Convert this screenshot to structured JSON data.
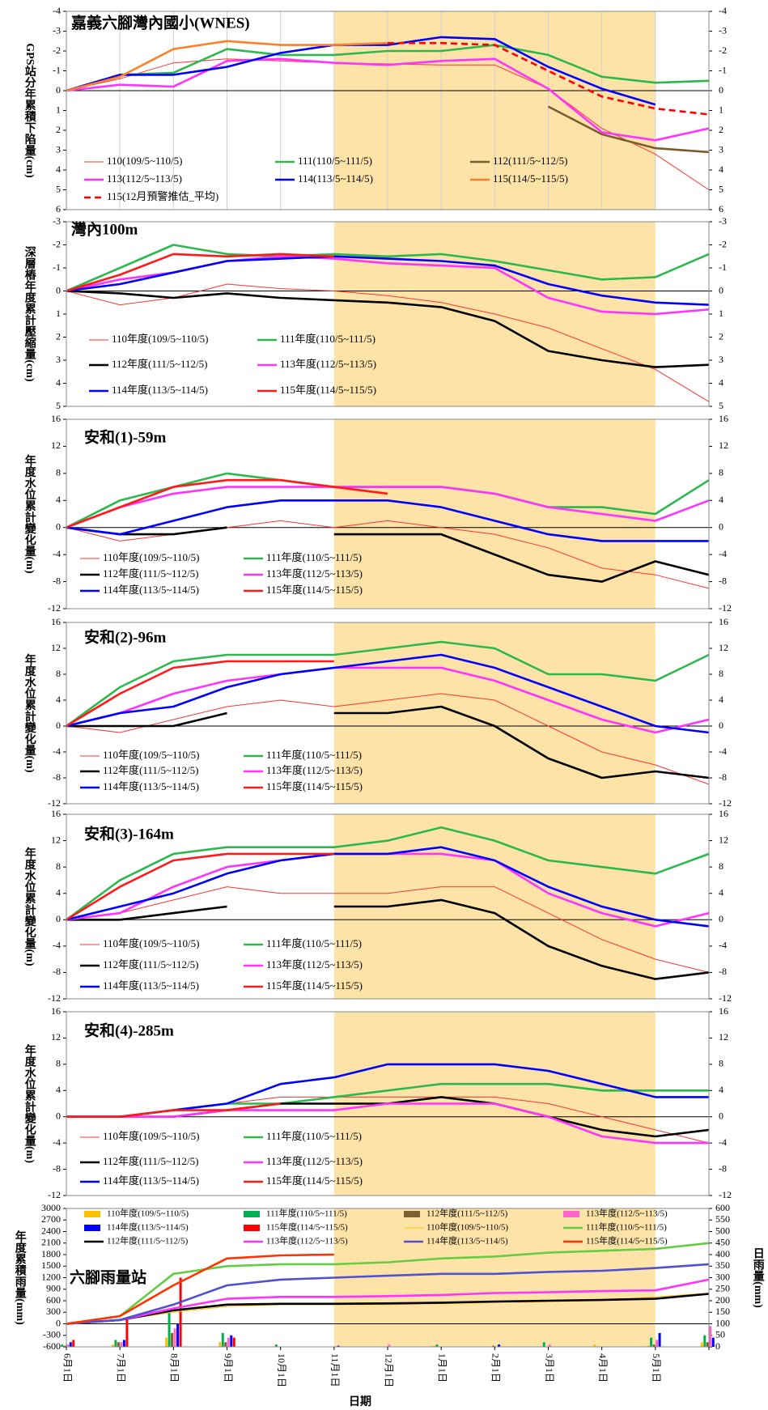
{
  "chart_data": [
    {
      "type": "line",
      "title": "嘉義六腳灣內國小(WNES)",
      "y_label": "GPS站分年累積下陷量(cm)",
      "ylim": [
        6,
        -4
      ],
      "yticks": [
        6,
        5,
        4,
        3,
        2,
        1,
        0,
        -1,
        -2,
        -3,
        -4
      ],
      "negative_tick_color": "#ff0000",
      "grid": true,
      "series": [
        {
          "name": "110(109/5~110/5)",
          "color": "#ff3333",
          "linestyle": "thin",
          "values": [
            0,
            -0.6,
            -1.4,
            -1.6,
            -1.5,
            -1.4,
            -1.35,
            -1.3,
            -1.3,
            -0.1,
            1.9,
            3.2,
            5.0
          ]
        },
        {
          "name": "111(110/5~111/5)",
          "color": "#2db84d",
          "values": [
            0,
            -0.8,
            -0.9,
            -2.1,
            -1.8,
            -1.8,
            -2.0,
            -2.0,
            -2.3,
            -1.8,
            -0.7,
            -0.4,
            -0.5
          ]
        },
        {
          "name": "112(111/5~112/5)",
          "color": "#7a5c2e",
          "values": [
            null,
            null,
            null,
            null,
            null,
            null,
            null,
            null,
            null,
            0.8,
            2.2,
            2.9,
            3.1
          ]
        },
        {
          "name": "113(112/5~113/5)",
          "color": "#ff33ff",
          "values": [
            0,
            -0.3,
            -0.2,
            -1.5,
            -1.6,
            -1.4,
            -1.3,
            -1.5,
            -1.6,
            -0.1,
            2.1,
            2.5,
            1.9
          ]
        },
        {
          "name": "114(113/5~114/5)",
          "color": "#0000ff",
          "values": [
            0,
            -0.8,
            -0.8,
            -1.2,
            -1.9,
            -2.3,
            -2.3,
            -2.7,
            -2.6,
            -1.2,
            -0.1,
            0.7,
            null
          ]
        },
        {
          "name": "115(114/5~115/5)",
          "color": "#ff7f27",
          "values": [
            0,
            -0.7,
            -2.1,
            -2.5,
            -2.3,
            -2.3,
            -2.4,
            null,
            null,
            null,
            null,
            null,
            null
          ]
        },
        {
          "name": "115(12月預警推估_平均)",
          "color": "#ff0000",
          "linestyle": "dashed",
          "values": [
            null,
            null,
            null,
            null,
            null,
            null,
            -2.4,
            -2.4,
            -2.3,
            -1.0,
            0.3,
            0.9,
            1.2
          ]
        }
      ]
    },
    {
      "type": "line",
      "title": "灣內100m",
      "y_label": "深層樁年度累計壓縮量(cm)",
      "ylim": [
        5,
        -3
      ],
      "yticks": [
        5,
        4,
        3,
        2,
        1,
        0,
        -1,
        -2,
        -3
      ],
      "negative_tick_color": "#ff0000",
      "series": [
        {
          "name": "110年度(109/5~110/5)",
          "color": "#ff3333",
          "linestyle": "thin",
          "values": [
            0,
            0.6,
            0.3,
            -0.3,
            -0.1,
            0.0,
            0.2,
            0.5,
            1.0,
            1.6,
            2.5,
            3.4,
            4.8
          ]
        },
        {
          "name": "111年度(110/5~111/5)",
          "color": "#2db84d",
          "values": [
            0,
            -1.0,
            -2.0,
            -1.6,
            -1.5,
            -1.6,
            -1.5,
            -1.6,
            -1.3,
            -0.9,
            -0.5,
            -0.6,
            -1.6
          ]
        },
        {
          "name": "112年度(111/5~112/5)",
          "color": "#000000",
          "values": [
            0,
            0.1,
            0.3,
            0.1,
            0.3,
            0.4,
            0.5,
            0.7,
            1.3,
            2.6,
            3.0,
            3.3,
            3.2
          ]
        },
        {
          "name": "113年度(112/5~113/5)",
          "color": "#ff33ff",
          "values": [
            0,
            -0.5,
            -0.8,
            -1.3,
            -1.5,
            -1.4,
            -1.2,
            -1.1,
            -1.0,
            0.3,
            0.9,
            1.0,
            0.8
          ]
        },
        {
          "name": "114年度(113/5~114/5)",
          "color": "#0000ff",
          "values": [
            0,
            -0.3,
            -0.8,
            -1.3,
            -1.4,
            -1.5,
            -1.4,
            -1.3,
            -1.1,
            -0.3,
            0.2,
            0.5,
            0.6
          ]
        },
        {
          "name": "115年度(114/5~115/5)",
          "color": "#ff1a1a",
          "values": [
            0,
            -0.7,
            -1.6,
            -1.5,
            -1.6,
            -1.5,
            null,
            null,
            null,
            null,
            null,
            null,
            null
          ]
        }
      ]
    },
    {
      "type": "line",
      "title": "安和(1)-59m",
      "y_label": "年度水位累計變化量(m)",
      "ylim": [
        -12,
        16
      ],
      "yticks": [
        -12,
        -8,
        -4,
        0,
        4,
        8,
        12,
        16
      ],
      "series": [
        {
          "name": "110年度(109/5~110/5)",
          "color": "#ff3333",
          "linestyle": "thin",
          "values": [
            0,
            -2,
            -1,
            0,
            1,
            0,
            1,
            0,
            -1,
            -3,
            -6,
            -7,
            -9
          ]
        },
        {
          "name": "111年度(110/5~111/5)",
          "color": "#2db84d",
          "values": [
            0,
            4,
            6,
            8,
            7,
            6,
            6,
            6,
            5,
            3,
            3,
            2,
            7
          ]
        },
        {
          "name": "112年度(111/5~112/5)",
          "color": "#000000",
          "values": [
            0,
            -1,
            -1,
            0,
            null,
            -1,
            -1,
            -1,
            -4,
            -7,
            -8,
            -5,
            -7
          ]
        },
        {
          "name": "113年度(112/5~113/5)",
          "color": "#ff33ff",
          "values": [
            0,
            3,
            5,
            6,
            6,
            6,
            6,
            6,
            5,
            3,
            2,
            1,
            4
          ]
        },
        {
          "name": "114年度(113/5~114/5)",
          "color": "#0000ff",
          "values": [
            0,
            -1,
            1,
            3,
            4,
            4,
            4,
            3,
            1,
            -1,
            -2,
            -2,
            -2
          ]
        },
        {
          "name": "115年度(114/5~115/5)",
          "color": "#ff1a1a",
          "values": [
            0,
            3,
            6,
            7,
            7,
            6,
            5,
            null,
            null,
            null,
            null,
            null,
            null
          ]
        }
      ]
    },
    {
      "type": "line",
      "title": "安和(2)-96m",
      "y_label": "年度水位累計變化量(m)",
      "ylim": [
        -12,
        16
      ],
      "yticks": [
        -12,
        -8,
        -4,
        0,
        4,
        8,
        12,
        16
      ],
      "series": [
        {
          "name": "110年度(109/5~110/5)",
          "color": "#ff3333",
          "linestyle": "thin",
          "values": [
            0,
            -1,
            1,
            3,
            4,
            3,
            4,
            5,
            4,
            0,
            -4,
            -6,
            -9
          ]
        },
        {
          "name": "111年度(110/5~111/5)",
          "color": "#2db84d",
          "values": [
            0,
            6,
            10,
            11,
            11,
            11,
            12,
            13,
            12,
            8,
            8,
            7,
            11
          ]
        },
        {
          "name": "112年度(111/5~112/5)",
          "color": "#000000",
          "values": [
            0,
            0,
            0,
            2,
            null,
            2,
            2,
            3,
            0,
            -5,
            -8,
            -7,
            -8
          ]
        },
        {
          "name": "113年度(112/5~113/5)",
          "color": "#ff33ff",
          "values": [
            0,
            2,
            5,
            7,
            8,
            9,
            9,
            9,
            7,
            4,
            1,
            -1,
            1
          ]
        },
        {
          "name": "114年度(113/5~114/5)",
          "color": "#0000ff",
          "values": [
            0,
            2,
            3,
            6,
            8,
            9,
            10,
            11,
            9,
            6,
            3,
            0,
            -1
          ]
        },
        {
          "name": "115年度(114/5~115/5)",
          "color": "#ff1a1a",
          "values": [
            0,
            5,
            9,
            10,
            10,
            10,
            null,
            null,
            null,
            null,
            null,
            null,
            null
          ]
        }
      ]
    },
    {
      "type": "line",
      "title": "安和(3)-164m",
      "y_label": "年度水位累計變化量(m)",
      "ylim": [
        -12,
        16
      ],
      "yticks": [
        -12,
        -8,
        -4,
        0,
        4,
        8,
        12,
        16
      ],
      "series": [
        {
          "name": "110年度(109/5~110/5)",
          "color": "#ff3333",
          "linestyle": "thin",
          "values": [
            0,
            1,
            3,
            5,
            4,
            4,
            4,
            5,
            5,
            1,
            -3,
            -6,
            -8
          ]
        },
        {
          "name": "111年度(110/5~111/5)",
          "color": "#2db84d",
          "values": [
            0,
            6,
            10,
            11,
            11,
            11,
            12,
            14,
            12,
            9,
            8,
            7,
            10
          ]
        },
        {
          "name": "112年度(111/5~112/5)",
          "color": "#000000",
          "values": [
            0,
            0,
            1,
            2,
            null,
            2,
            2,
            3,
            1,
            -4,
            -7,
            -9,
            -8
          ]
        },
        {
          "name": "113年度(112/5~113/5)",
          "color": "#ff33ff",
          "values": [
            0,
            1,
            5,
            8,
            9,
            10,
            10,
            10,
            9,
            4,
            1,
            -1,
            1
          ]
        },
        {
          "name": "114年度(113/5~114/5)",
          "color": "#0000ff",
          "values": [
            0,
            2,
            4,
            7,
            9,
            10,
            10,
            11,
            9,
            5,
            2,
            0,
            -1
          ]
        },
        {
          "name": "115年度(114/5~115/5)",
          "color": "#ff1a1a",
          "values": [
            0,
            5,
            9,
            10,
            10,
            10,
            null,
            null,
            null,
            null,
            null,
            null,
            null
          ]
        }
      ]
    },
    {
      "type": "line",
      "title": "安和(4)-285m",
      "y_label": "年度水位累計變化量(m)",
      "ylim": [
        -12,
        16
      ],
      "yticks": [
        -12,
        -8,
        -4,
        0,
        4,
        8,
        12,
        16
      ],
      "series": [
        {
          "name": "110年度(109/5~110/5)",
          "color": "#ff3333",
          "linestyle": "thin",
          "values": [
            0,
            0,
            1,
            2,
            3,
            3,
            3,
            3,
            3,
            2,
            0,
            -2,
            -4
          ]
        },
        {
          "name": "111年度(110/5~111/5)",
          "color": "#2db84d",
          "values": [
            0,
            0,
            1,
            2,
            2,
            3,
            4,
            5,
            5,
            5,
            4,
            4,
            4
          ]
        },
        {
          "name": "112年度(111/5~112/5)",
          "color": "#000000",
          "values": [
            0,
            0,
            0,
            1,
            2,
            2,
            2,
            3,
            2,
            0,
            -2,
            -3,
            -2
          ]
        },
        {
          "name": "113年度(112/5~113/5)",
          "color": "#ff33ff",
          "values": [
            0,
            0,
            0,
            1,
            1,
            1,
            2,
            2,
            2,
            0,
            -3,
            -4,
            -4
          ]
        },
        {
          "name": "114年度(113/5~114/5)",
          "color": "#0000ff",
          "values": [
            0,
            0,
            1,
            2,
            5,
            6,
            8,
            8,
            8,
            7,
            5,
            3,
            3
          ]
        },
        {
          "name": "115年度(114/5~115/5)",
          "color": "#ff1a1a",
          "values": [
            0,
            0,
            1,
            1,
            2,
            null,
            null,
            null,
            null,
            null,
            null,
            null,
            null
          ]
        }
      ]
    },
    {
      "type": "line",
      "title": "六腳雨量站",
      "y_label": "年度累積雨量(mm)",
      "y2_label": "日雨量(mm)",
      "xlabel": "日期",
      "categories": [
        "6月1日",
        "7月1日",
        "8月1日",
        "9月1日",
        "10月1日",
        "11月1日",
        "12月1日",
        "1月1日",
        "2月1日",
        "3月1日",
        "4月1日",
        "5月1日",
        null
      ],
      "ylim": [
        -600,
        3000
      ],
      "yticks": [
        -600,
        -300,
        0,
        300,
        600,
        900,
        1200,
        1500,
        1800,
        2100,
        2400,
        2700,
        3000
      ],
      "y2lim": [
        0,
        600
      ],
      "y2ticks": [
        0,
        50,
        100,
        150,
        200,
        250,
        300,
        350,
        400,
        450,
        500,
        550,
        600
      ],
      "series": [
        {
          "name": "110年度(109/5~110/5)",
          "type": "bar",
          "axis": "y2",
          "color": "#ffc000",
          "values": [
            0,
            10,
            40,
            20,
            0,
            0,
            0,
            5,
            0,
            0,
            10,
            5,
            20
          ]
        },
        {
          "name": "111年度(110/5~111/5)",
          "type": "bar",
          "axis": "y2",
          "color": "#00b050",
          "values": [
            10,
            30,
            150,
            60,
            10,
            0,
            0,
            10,
            0,
            20,
            0,
            40,
            50
          ]
        },
        {
          "name": "112年度(111/5~112/5)",
          "type": "bar",
          "axis": "y2",
          "color": "#7f6030",
          "values": [
            5,
            20,
            60,
            20,
            0,
            0,
            0,
            0,
            5,
            0,
            0,
            10,
            20
          ]
        },
        {
          "name": "113年度(112/5~113/5)",
          "type": "bar",
          "axis": "y2",
          "color": "#ff66cc",
          "values": [
            10,
            20,
            80,
            40,
            0,
            0,
            10,
            0,
            0,
            10,
            0,
            30,
            90
          ]
        },
        {
          "name": "114年度(113/5~114/5)",
          "type": "bar",
          "axis": "y2",
          "color": "#0000ff",
          "values": [
            20,
            30,
            100,
            50,
            0,
            5,
            0,
            0,
            10,
            0,
            0,
            60,
            40
          ]
        },
        {
          "name": "115年度(114/5~115/5)",
          "type": "bar",
          "axis": "y2",
          "color": "#ff0000",
          "values": [
            30,
            120,
            300,
            40,
            0,
            0,
            null,
            null,
            null,
            null,
            null,
            null,
            null
          ]
        },
        {
          "name": "110年度(109/5~110/5)",
          "color": "#ffc000",
          "linestyle": "thin",
          "values": [
            0,
            100,
            300,
            450,
            500,
            500,
            500,
            520,
            550,
            580,
            600,
            700,
            800
          ]
        },
        {
          "name": "111年度(110/5~111/5)",
          "color": "#66cc44",
          "values": [
            0,
            200,
            1300,
            1500,
            1550,
            1550,
            1600,
            1700,
            1750,
            1850,
            1900,
            1950,
            2100
          ]
        },
        {
          "name": "112年度(111/5~112/5)",
          "color": "#000000",
          "values": [
            0,
            100,
            350,
            500,
            520,
            520,
            530,
            550,
            580,
            600,
            620,
            650,
            780
          ]
        },
        {
          "name": "113年度(112/5~113/5)",
          "color": "#ff33ff",
          "values": [
            0,
            100,
            400,
            650,
            700,
            700,
            720,
            750,
            800,
            820,
            850,
            870,
            1150
          ]
        },
        {
          "name": "114年度(113/5~114/5)",
          "color": "#5050d0",
          "values": [
            0,
            100,
            500,
            1000,
            1150,
            1200,
            1250,
            1300,
            1300,
            1350,
            1380,
            1450,
            1550
          ]
        },
        {
          "name": "115年度(114/5~115/5)",
          "color": "#ff3300",
          "values": [
            0,
            200,
            1000,
            1700,
            1780,
            1800,
            null,
            null,
            null,
            null,
            null,
            null,
            null
          ]
        }
      ]
    }
  ]
}
